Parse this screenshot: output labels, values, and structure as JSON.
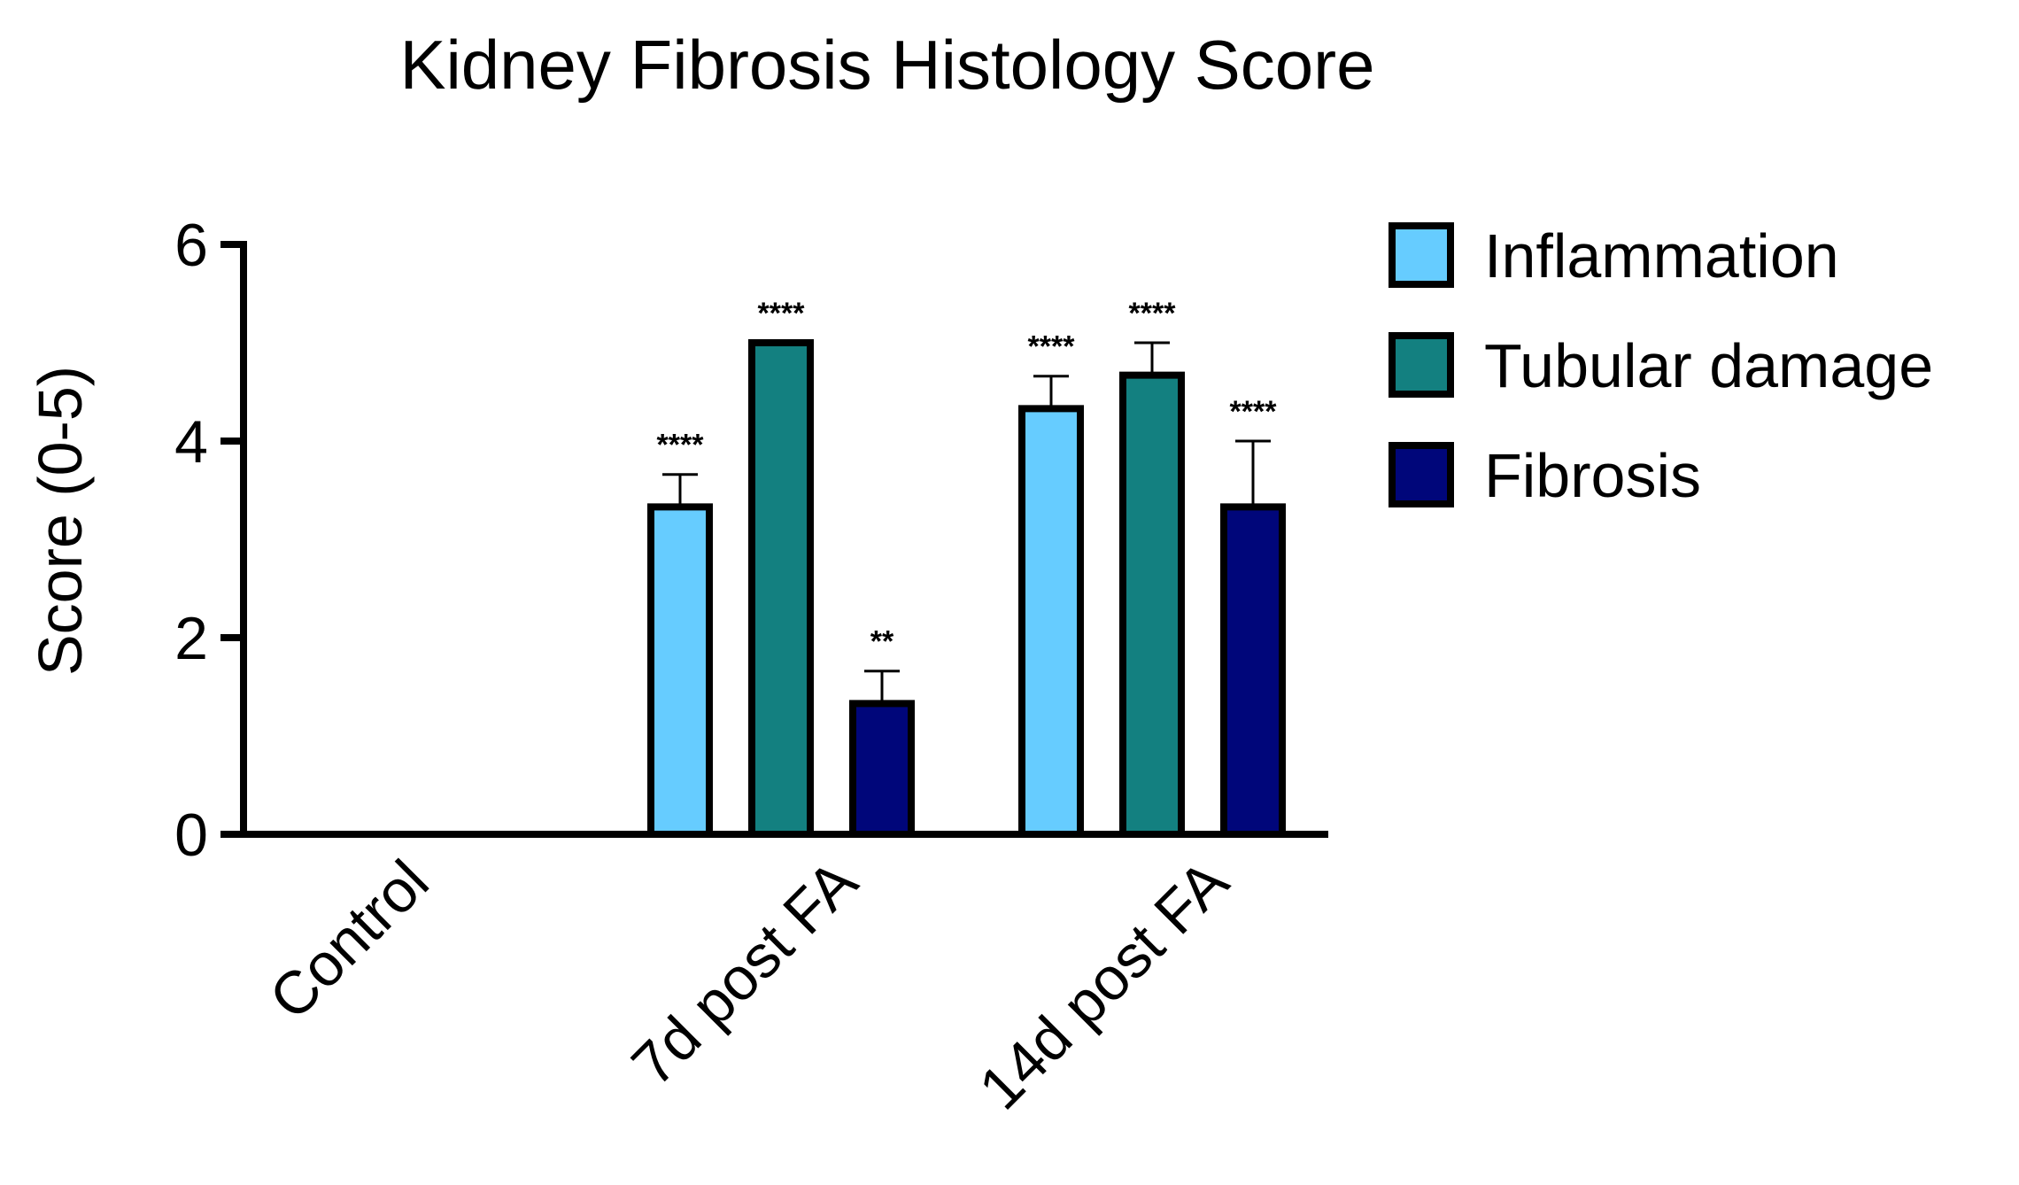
{
  "chart_data": {
    "type": "bar",
    "title": "Kidney Fibrosis Histology Score",
    "xlabel": "",
    "ylabel": "Score (0-5)",
    "ylim": [
      0,
      6
    ],
    "yticks": [
      0,
      2,
      4,
      6
    ],
    "yticks_labels": [
      "0",
      "2",
      "4",
      "6"
    ],
    "grid": false,
    "legend_position": "top-right",
    "categories": [
      "Control",
      "7d post FA",
      "14d post FA"
    ],
    "series": [
      {
        "name": "Inflammation",
        "color": "#66ccff",
        "values": [
          0,
          3.33,
          4.33
        ],
        "errors": [
          0,
          0.33,
          0.33
        ],
        "significance": [
          "",
          "****",
          "****"
        ]
      },
      {
        "name": "Tubular damage",
        "color": "#138080",
        "values": [
          0,
          5.0,
          4.67
        ],
        "errors": [
          0,
          0,
          0.33
        ],
        "significance": [
          "",
          "****",
          "****"
        ]
      },
      {
        "name": "Fibrosis",
        "color": "#00067a",
        "values": [
          0,
          1.33,
          3.33
        ],
        "errors": [
          0,
          0.33,
          0.67
        ],
        "significance": [
          "",
          "**",
          "****"
        ]
      }
    ]
  }
}
